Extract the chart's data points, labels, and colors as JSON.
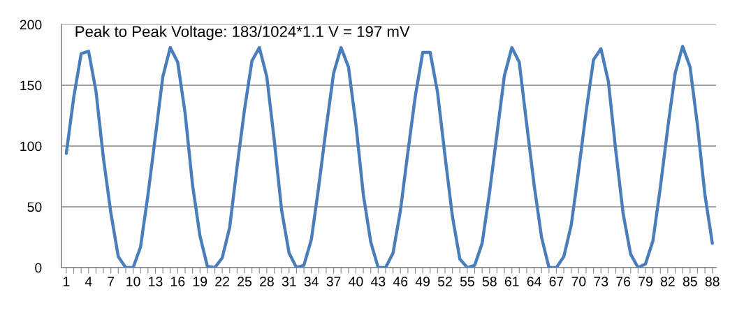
{
  "chart_data": {
    "type": "line",
    "categories": [
      "1",
      null,
      null,
      "4",
      null,
      null,
      "7",
      null,
      null,
      "10",
      null,
      null,
      "13",
      null,
      null,
      "16",
      null,
      null,
      "19",
      null,
      null,
      "22",
      null,
      null,
      "25",
      null,
      null,
      "28",
      null,
      null,
      "31",
      null,
      null,
      "34",
      null,
      null,
      "37",
      null,
      null,
      "40",
      null,
      null,
      "43",
      null,
      null,
      "46",
      null,
      null,
      "49",
      null,
      null,
      "52",
      null,
      null,
      "55",
      null,
      null,
      "58",
      null,
      null,
      "61",
      null,
      null,
      "64",
      null,
      null,
      "67",
      null,
      null,
      "70",
      null,
      null,
      "73",
      null,
      null,
      "76",
      null,
      null,
      "79",
      null,
      null,
      "82",
      null,
      null,
      "85",
      null,
      null,
      "88"
    ],
    "series": [
      {
        "color": "#4a7ebb",
        "values": [
          94,
          140,
          176,
          178,
          145,
          90,
          45,
          9,
          0,
          0,
          17,
          60,
          108,
          157,
          181,
          169,
          127,
          68,
          26,
          1,
          0,
          8,
          33,
          83,
          130,
          170,
          181,
          157,
          105,
          47,
          12,
          0,
          2,
          23,
          67,
          115,
          160,
          181,
          165,
          118,
          60,
          21,
          0,
          0,
          12,
          47,
          95,
          141,
          177,
          177,
          144,
          92,
          42,
          7,
          0,
          2,
          20,
          62,
          110,
          158,
          181,
          169,
          118,
          68,
          25,
          0,
          0,
          9,
          35,
          80,
          128,
          171,
          180,
          153,
          96,
          44,
          11,
          0,
          3,
          22,
          66,
          115,
          160,
          182,
          165,
          117,
          60,
          20
        ]
      }
    ],
    "annotations": [
      "Peak to Peak Voltage: 183/1024*1.1 V = 197 mV"
    ],
    "ylim": [
      0,
      200
    ],
    "yticks": [
      0,
      50,
      100,
      150,
      200
    ],
    "grid": "y",
    "legend": false,
    "marker": "none",
    "line_style": "solid"
  }
}
